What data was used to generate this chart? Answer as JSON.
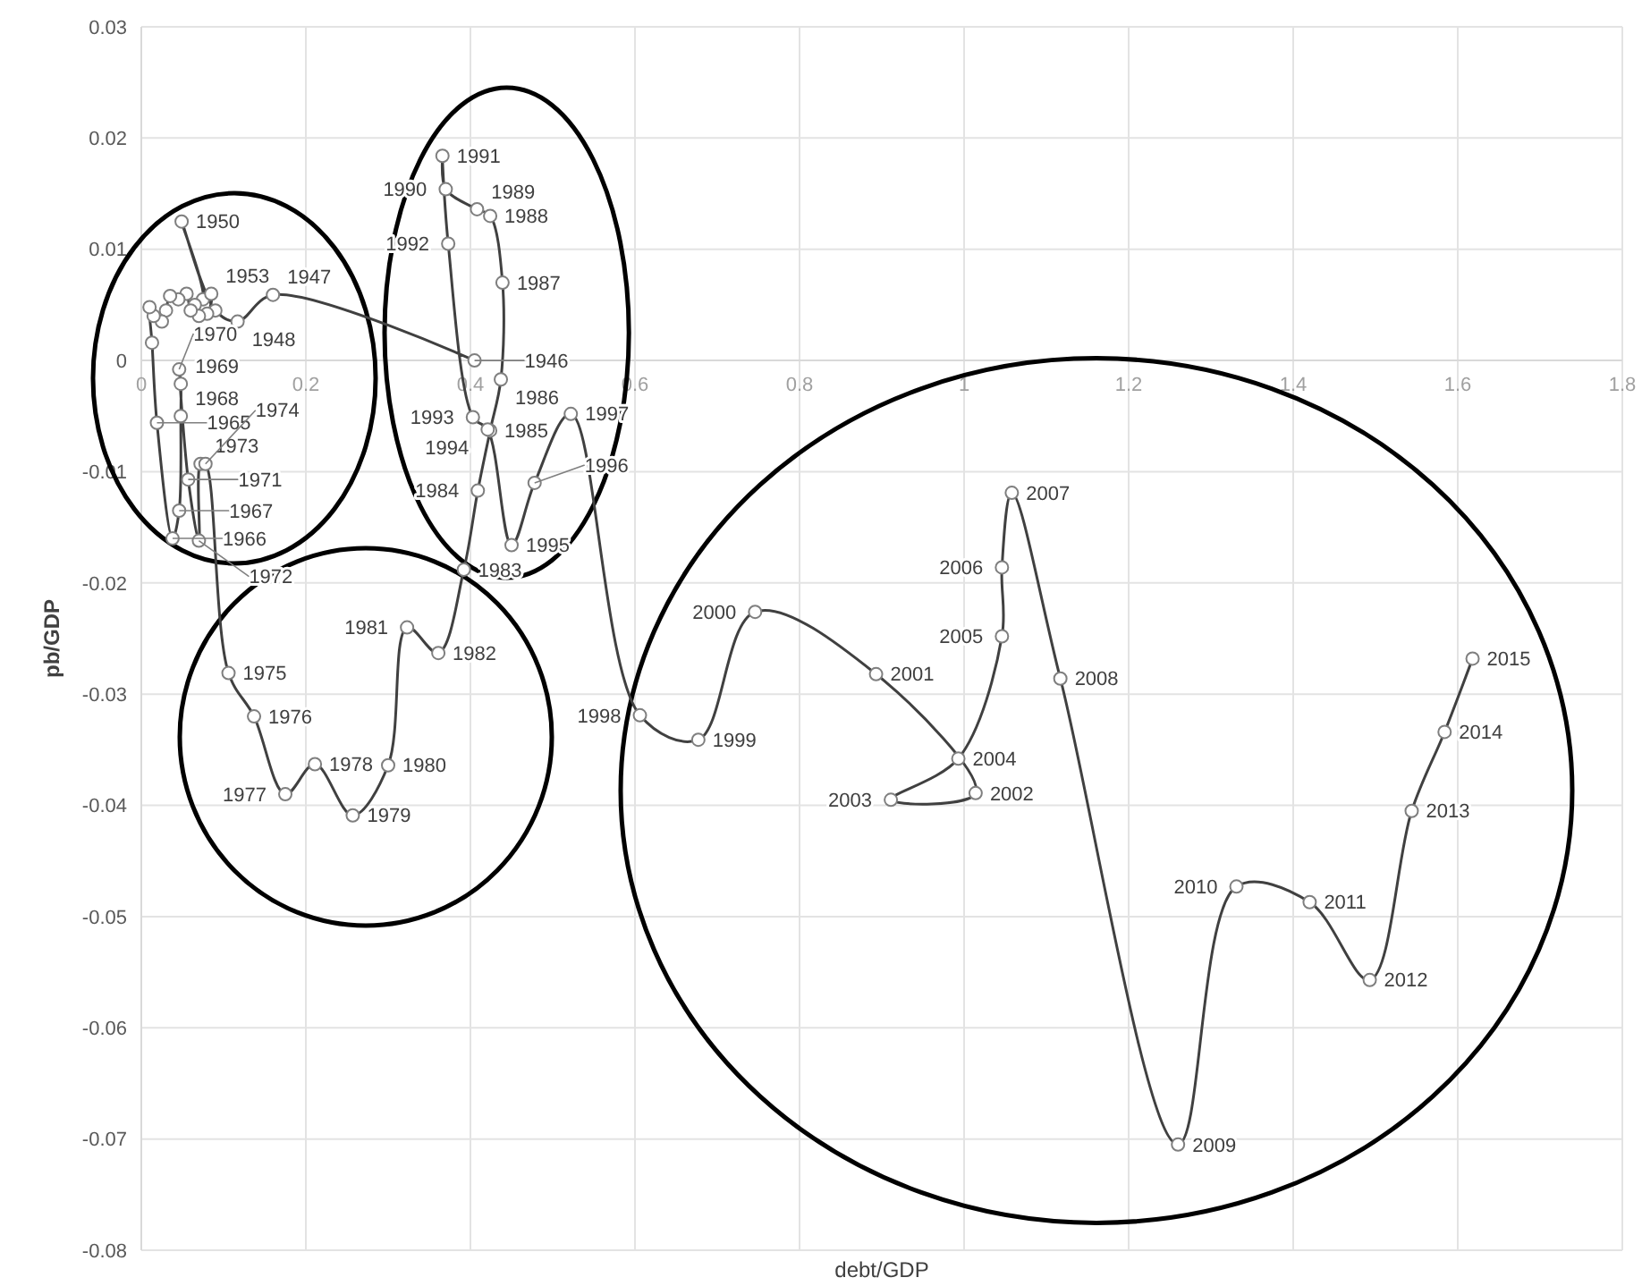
{
  "chart_data": {
    "type": "line",
    "xlabel": "debt/GDP",
    "ylabel": "pb/GDP",
    "xlim": [
      0,
      1.8
    ],
    "xticks": [
      0,
      0.2,
      0.4,
      0.6,
      0.8,
      1,
      1.2,
      1.4,
      1.6,
      1.8
    ],
    "ylim": [
      -0.08,
      0.03
    ],
    "yticks": [
      -0.08,
      -0.07,
      -0.06,
      -0.05,
      -0.04,
      -0.03,
      -0.02,
      -0.01,
      0,
      0.01,
      0.02,
      0.03
    ],
    "grid": true,
    "marker": "circle",
    "line_style": "solid",
    "series": [
      {
        "color": "#404040",
        "x": [
          0.405,
          0.16,
          0.117,
          0.09,
          0.049,
          0.075,
          0.065,
          0.085,
          0.08,
          0.07,
          0.06,
          0.055,
          0.045,
          0.035,
          0.03,
          0.025,
          0.015,
          0.01,
          0.013,
          0.019,
          0.038,
          0.046,
          0.048,
          0.048,
          0.046,
          0.057,
          0.07,
          0.072,
          0.078,
          0.106,
          0.137,
          0.175,
          0.211,
          0.257,
          0.3,
          0.323,
          0.361,
          0.392,
          0.409,
          0.424,
          0.437,
          0.439,
          0.424,
          0.408,
          0.37,
          0.366,
          0.373,
          0.403,
          0.421,
          0.45,
          0.478,
          0.522,
          0.606,
          0.677,
          0.746,
          0.893,
          1.014,
          0.911,
          0.993,
          1.046,
          1.046,
          1.058,
          1.117,
          1.26,
          1.331,
          1.42,
          1.493,
          1.544,
          1.584,
          1.618
        ],
        "values": [
          0,
          0.0059,
          0.0035,
          0.0045,
          0.0125,
          0.0055,
          0.005,
          0.006,
          0.0042,
          0.004,
          0.0045,
          0.006,
          0.0055,
          0.0058,
          0.0045,
          0.0035,
          0.004,
          0.0048,
          0.0016,
          -0.0056,
          -0.016,
          -0.0135,
          -0.005,
          -0.0021,
          -0.0008,
          -0.0107,
          -0.0162,
          -0.0093,
          -0.0093,
          -0.0281,
          -0.032,
          -0.039,
          -0.0363,
          -0.0409,
          -0.0364,
          -0.024,
          -0.0263,
          -0.0188,
          -0.0117,
          -0.0063,
          -0.0017,
          0.007,
          0.013,
          0.0136,
          0.0154,
          0.0184,
          0.0105,
          -0.0051,
          -0.0062,
          -0.0166,
          -0.011,
          -0.0048,
          -0.0319,
          -0.0341,
          -0.0226,
          -0.0282,
          -0.0389,
          -0.0395,
          -0.0358,
          -0.0248,
          -0.0186,
          -0.0119,
          -0.0286,
          -0.0705,
          -0.0473,
          -0.0487,
          -0.0557,
          -0.0405,
          -0.0334,
          -0.0268
        ]
      }
    ],
    "annotations": [
      {
        "text": "1946",
        "x": 0.405,
        "y": 0
      },
      {
        "text": "1947",
        "x": 0.16,
        "y": 0.0059
      },
      {
        "text": "1948",
        "x": 0.117,
        "y": 0.0035
      },
      {
        "text": "1950",
        "x": 0.049,
        "y": 0.0125
      },
      {
        "text": "1953",
        "x": 0.085,
        "y": 0.006
      },
      {
        "text": "1965",
        "x": 0.019,
        "y": -0.0056
      },
      {
        "text": "1966",
        "x": 0.038,
        "y": -0.016
      },
      {
        "text": "1967",
        "x": 0.046,
        "y": -0.0135
      },
      {
        "text": "1968",
        "x": 0.048,
        "y": -0.005
      },
      {
        "text": "1969",
        "x": 0.048,
        "y": -0.0021
      },
      {
        "text": "1970",
        "x": 0.046,
        "y": -0.0008
      },
      {
        "text": "1971",
        "x": 0.057,
        "y": -0.0107
      },
      {
        "text": "1972",
        "x": 0.07,
        "y": -0.0162
      },
      {
        "text": "1973",
        "x": 0.072,
        "y": -0.0093
      },
      {
        "text": "1974",
        "x": 0.078,
        "y": -0.0093
      },
      {
        "text": "1975",
        "x": 0.106,
        "y": -0.0281
      },
      {
        "text": "1976",
        "x": 0.137,
        "y": -0.032
      },
      {
        "text": "1977",
        "x": 0.175,
        "y": -0.039
      },
      {
        "text": "1978",
        "x": 0.211,
        "y": -0.0363
      },
      {
        "text": "1979",
        "x": 0.257,
        "y": -0.0409
      },
      {
        "text": "1980",
        "x": 0.3,
        "y": -0.0364
      },
      {
        "text": "1981",
        "x": 0.323,
        "y": -0.024
      },
      {
        "text": "1982",
        "x": 0.361,
        "y": -0.0263
      },
      {
        "text": "1983",
        "x": 0.392,
        "y": -0.0188
      },
      {
        "text": "1984",
        "x": 0.409,
        "y": -0.0117
      },
      {
        "text": "1985",
        "x": 0.424,
        "y": -0.0063
      },
      {
        "text": "1986",
        "x": 0.437,
        "y": -0.0017
      },
      {
        "text": "1987",
        "x": 0.439,
        "y": 0.007
      },
      {
        "text": "1988",
        "x": 0.424,
        "y": 0.013
      },
      {
        "text": "1989",
        "x": 0.408,
        "y": 0.0136
      },
      {
        "text": "1990",
        "x": 0.37,
        "y": 0.0154
      },
      {
        "text": "1991",
        "x": 0.366,
        "y": 0.0184
      },
      {
        "text": "1992",
        "x": 0.373,
        "y": 0.0105
      },
      {
        "text": "1993",
        "x": 0.403,
        "y": -0.0051
      },
      {
        "text": "1994",
        "x": 0.421,
        "y": -0.0062
      },
      {
        "text": "1995",
        "x": 0.45,
        "y": -0.0166
      },
      {
        "text": "1996",
        "x": 0.478,
        "y": -0.011
      },
      {
        "text": "1997",
        "x": 0.522,
        "y": -0.0048
      },
      {
        "text": "1998",
        "x": 0.606,
        "y": -0.0319
      },
      {
        "text": "1999",
        "x": 0.677,
        "y": -0.0341
      },
      {
        "text": "2000",
        "x": 0.746,
        "y": -0.0226
      },
      {
        "text": "2001",
        "x": 0.893,
        "y": -0.0282
      },
      {
        "text": "2002",
        "x": 1.014,
        "y": -0.0389
      },
      {
        "text": "2003",
        "x": 0.911,
        "y": -0.0395
      },
      {
        "text": "2004",
        "x": 0.993,
        "y": -0.0358
      },
      {
        "text": "2005",
        "x": 1.046,
        "y": -0.0248
      },
      {
        "text": "2006",
        "x": 1.046,
        "y": -0.0186
      },
      {
        "text": "2007",
        "x": 1.058,
        "y": -0.0119
      },
      {
        "text": "2008",
        "x": 1.117,
        "y": -0.0286
      },
      {
        "text": "2009",
        "x": 1.26,
        "y": -0.0705
      },
      {
        "text": "2010",
        "x": 1.331,
        "y": -0.0473
      },
      {
        "text": "2011",
        "x": 1.42,
        "y": -0.0487
      },
      {
        "text": "2012",
        "x": 1.493,
        "y": -0.0557
      },
      {
        "text": "2013",
        "x": 1.544,
        "y": -0.0405
      },
      {
        "text": "2014",
        "x": 1.584,
        "y": -0.0334
      },
      {
        "text": "2015",
        "x": 1.618,
        "y": -0.0268
      }
    ]
  }
}
